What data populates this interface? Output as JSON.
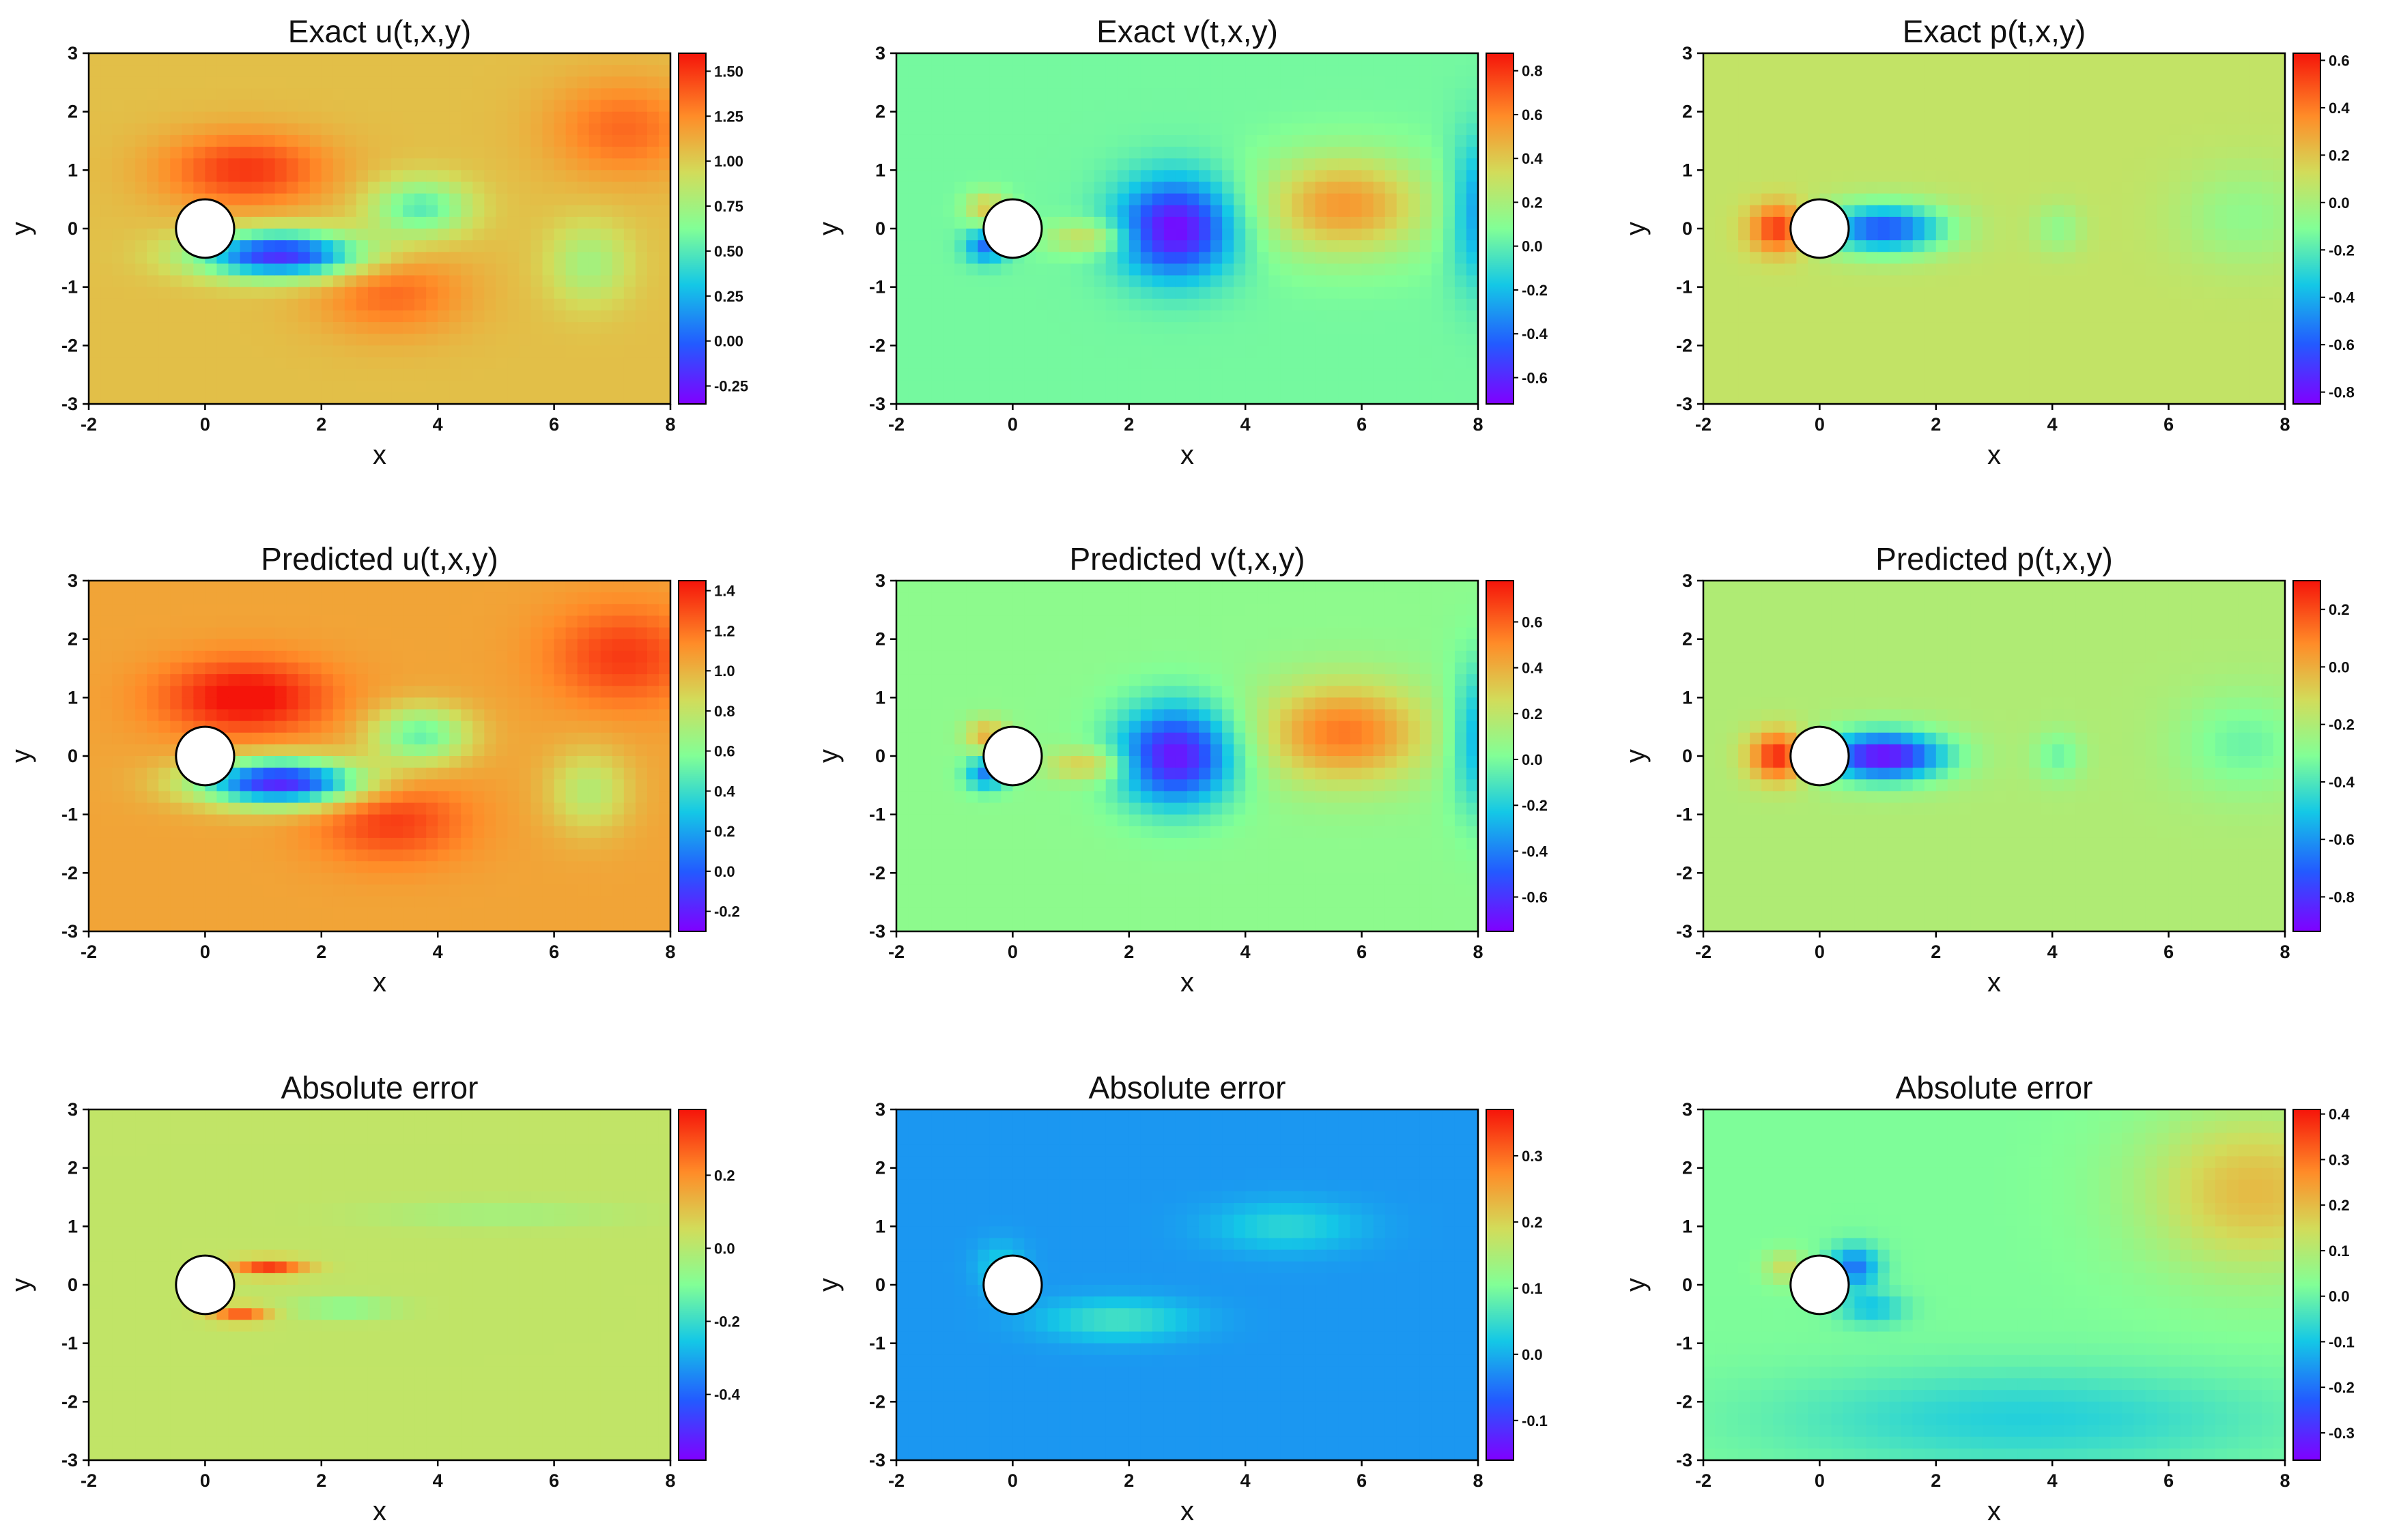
{
  "chart_data": [
    {
      "type": "heatmap",
      "title": "Exact u(t,x,y)",
      "xlabel": "x",
      "ylabel": "y",
      "xlim": [
        -2,
        8
      ],
      "ylim": [
        -3,
        3
      ],
      "xticks": [
        "-2",
        "0",
        "2",
        "4",
        "6",
        "8"
      ],
      "yticks": [
        "-3",
        "-2",
        "-1",
        "0",
        "1",
        "2",
        "3"
      ],
      "colorbar": {
        "range": [
          -0.35,
          1.6
        ],
        "ticks": [
          "1.50",
          "1.25",
          "1.00",
          "0.75",
          "0.50",
          "0.25",
          "0.00",
          "-0.25"
        ],
        "tick_values": [
          1.5,
          1.25,
          1.0,
          0.75,
          0.5,
          0.25,
          0.0,
          -0.25
        ]
      },
      "field": "u",
      "background": 1.05,
      "obstacle": {
        "shape": "circle",
        "center": [
          0,
          0
        ],
        "radius": 0.5
      }
    },
    {
      "type": "heatmap",
      "title": "Exact v(t,x,y)",
      "xlabel": "x",
      "ylabel": "y",
      "xlim": [
        -2,
        8
      ],
      "ylim": [
        -3,
        3
      ],
      "xticks": [
        "-2",
        "0",
        "2",
        "4",
        "6",
        "8"
      ],
      "yticks": [
        "-3",
        "-2",
        "-1",
        "0",
        "1",
        "2",
        "3"
      ],
      "colorbar": {
        "range": [
          -0.72,
          0.88
        ],
        "ticks": [
          "0.8",
          "0.6",
          "0.4",
          "0.2",
          "0.0",
          "-0.2",
          "-0.4",
          "-0.6"
        ],
        "tick_values": [
          0.8,
          0.6,
          0.4,
          0.2,
          0.0,
          -0.2,
          -0.4,
          -0.6
        ]
      },
      "field": "v",
      "background": 0.05,
      "obstacle": {
        "shape": "circle",
        "center": [
          0,
          0
        ],
        "radius": 0.5
      }
    },
    {
      "type": "heatmap",
      "title": "Exact p(t,x,y)",
      "xlabel": "x",
      "ylabel": "y",
      "xlim": [
        -2,
        8
      ],
      "ylim": [
        -3,
        3
      ],
      "xticks": [
        "-2",
        "0",
        "2",
        "4",
        "6",
        "8"
      ],
      "yticks": [
        "-3",
        "-2",
        "-1",
        "0",
        "1",
        "2",
        "3"
      ],
      "colorbar": {
        "range": [
          -0.85,
          0.63
        ],
        "ticks": [
          "0.6",
          "0.4",
          "0.2",
          "0.0",
          "-0.2",
          "-0.4",
          "-0.6",
          "-0.8"
        ],
        "tick_values": [
          0.6,
          0.4,
          0.2,
          0.0,
          -0.2,
          -0.4,
          -0.6,
          -0.8
        ]
      },
      "field": "p",
      "background": 0.08,
      "obstacle": {
        "shape": "circle",
        "center": [
          0,
          0
        ],
        "radius": 0.5
      }
    },
    {
      "type": "heatmap",
      "title": "Predicted u(t,x,y)",
      "xlabel": "x",
      "ylabel": "y",
      "xlim": [
        -2,
        8
      ],
      "ylim": [
        -3,
        3
      ],
      "xticks": [
        "-2",
        "0",
        "2",
        "4",
        "6",
        "8"
      ],
      "yticks": [
        "-3",
        "-2",
        "-1",
        "0",
        "1",
        "2",
        "3"
      ],
      "colorbar": {
        "range": [
          -0.3,
          1.45
        ],
        "ticks": [
          "1.4",
          "1.2",
          "1.0",
          "0.8",
          "0.6",
          "0.4",
          "0.2",
          "0.0",
          "-0.2"
        ],
        "tick_values": [
          1.4,
          1.2,
          1.0,
          0.8,
          0.6,
          0.4,
          0.2,
          0.0,
          -0.2
        ]
      },
      "field": "u",
      "background": 1.05,
      "obstacle": {
        "shape": "circle",
        "center": [
          0,
          0
        ],
        "radius": 0.5
      }
    },
    {
      "type": "heatmap",
      "title": "Predicted v(t,x,y)",
      "xlabel": "x",
      "ylabel": "y",
      "xlim": [
        -2,
        8
      ],
      "ylim": [
        -3,
        3
      ],
      "xticks": [
        "-2",
        "0",
        "2",
        "4",
        "6",
        "8"
      ],
      "yticks": [
        "-3",
        "-2",
        "-1",
        "0",
        "1",
        "2",
        "3"
      ],
      "colorbar": {
        "range": [
          -0.75,
          0.78
        ],
        "ticks": [
          "0.6",
          "0.4",
          "0.2",
          "0.0",
          "-0.2",
          "-0.4",
          "-0.6"
        ],
        "tick_values": [
          0.6,
          0.4,
          0.2,
          0.0,
          -0.2,
          -0.4,
          -0.6
        ]
      },
      "field": "v",
      "background": 0.05,
      "obstacle": {
        "shape": "circle",
        "center": [
          0,
          0
        ],
        "radius": 0.5
      }
    },
    {
      "type": "heatmap",
      "title": "Predicted p(t,x,y)",
      "xlabel": "x",
      "ylabel": "y",
      "xlim": [
        -2,
        8
      ],
      "ylim": [
        -3,
        3
      ],
      "xticks": [
        "-2",
        "0",
        "2",
        "4",
        "6",
        "8"
      ],
      "yticks": [
        "-3",
        "-2",
        "-1",
        "0",
        "1",
        "2",
        "3"
      ],
      "colorbar": {
        "range": [
          -0.92,
          0.3
        ],
        "ticks": [
          "0.2",
          "0.0",
          "-0.2",
          "-0.4",
          "-0.6",
          "-0.8"
        ],
        "tick_values": [
          0.2,
          0.0,
          -0.2,
          -0.4,
          -0.6,
          -0.8
        ]
      },
      "field": "p",
      "background": -0.2,
      "obstacle": {
        "shape": "circle",
        "center": [
          0,
          0
        ],
        "radius": 0.5
      }
    },
    {
      "type": "heatmap",
      "title": "Absolute error",
      "xlabel": "x",
      "ylabel": "y",
      "xlim": [
        -2,
        8
      ],
      "ylim": [
        -3,
        3
      ],
      "xticks": [
        "-2",
        "0",
        "2",
        "4",
        "6",
        "8"
      ],
      "yticks": [
        "-3",
        "-2",
        "-1",
        "0",
        "1",
        "2",
        "3"
      ],
      "colorbar": {
        "range": [
          -0.58,
          0.38
        ],
        "ticks": [
          "0.2",
          "0.0",
          "-0.2",
          "-0.4"
        ],
        "tick_values": [
          0.2,
          0.0,
          -0.2,
          -0.4
        ]
      },
      "field": "eu",
      "background": 0.02,
      "obstacle": {
        "shape": "circle",
        "center": [
          0,
          0
        ],
        "radius": 0.5
      }
    },
    {
      "type": "heatmap",
      "title": "Absolute error",
      "xlabel": "x",
      "ylabel": "y",
      "xlim": [
        -2,
        8
      ],
      "ylim": [
        -3,
        3
      ],
      "xticks": [
        "-2",
        "0",
        "2",
        "4",
        "6",
        "8"
      ],
      "yticks": [
        "-3",
        "-2",
        "-1",
        "0",
        "1",
        "2",
        "3"
      ],
      "colorbar": {
        "range": [
          -0.16,
          0.37
        ],
        "ticks": [
          "0.3",
          "0.2",
          "0.1",
          "0.0",
          "-0.1"
        ],
        "tick_values": [
          0.3,
          0.2,
          0.1,
          0.0,
          -0.1
        ]
      },
      "field": "ev",
      "background": 0.02,
      "obstacle": {
        "shape": "circle",
        "center": [
          0,
          0
        ],
        "radius": 0.5
      }
    },
    {
      "type": "heatmap",
      "title": "Absolute error",
      "xlabel": "x",
      "ylabel": "y",
      "xlim": [
        -2,
        8
      ],
      "ylim": [
        -3,
        3
      ],
      "xticks": [
        "-2",
        "0",
        "2",
        "4",
        "6",
        "8"
      ],
      "yticks": [
        "-3",
        "-2",
        "-1",
        "0",
        "1",
        "2",
        "3"
      ],
      "colorbar": {
        "range": [
          -0.36,
          0.41
        ],
        "ticks": [
          "0.4",
          "0.3",
          "0.2",
          "0.1",
          "0.0",
          "-0.1",
          "-0.2",
          "-0.3"
        ],
        "tick_values": [
          0.4,
          0.3,
          0.2,
          0.1,
          0.0,
          -0.1,
          -0.2,
          -0.3
        ]
      },
      "field": "ep",
      "background": 0.02,
      "obstacle": {
        "shape": "circle",
        "center": [
          0,
          0
        ],
        "radius": 0.5
      }
    }
  ]
}
